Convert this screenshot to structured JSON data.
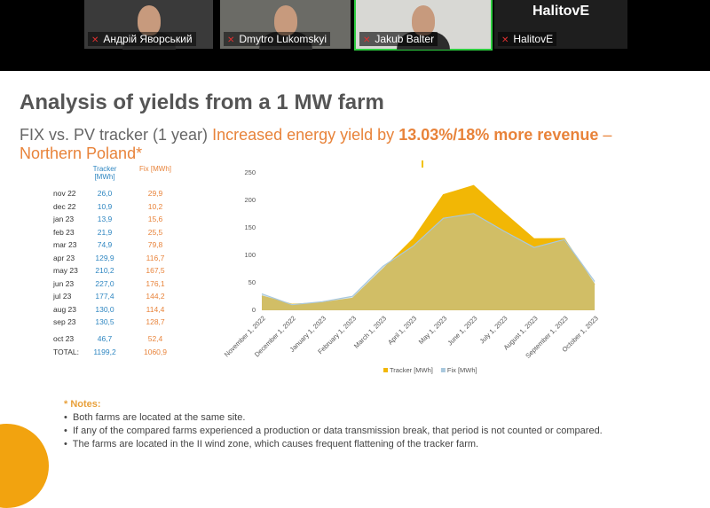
{
  "participants": [
    {
      "name": "Андрій Яворський"
    },
    {
      "name": "Dmytro Lukomskyi"
    },
    {
      "name": "Jakub Balter"
    },
    {
      "name": "HalitovE"
    }
  ],
  "avatar_label": "HalitovE",
  "slide": {
    "title": "Analysis of yields from a 1 MW farm",
    "subtitle": {
      "part1": "FIX vs. PV tracker (1 year)",
      "part2": "Increased energy yield by",
      "part3": "13.03%/18% more revenue",
      "part4": "– Northern Poland*"
    },
    "table": {
      "header": [
        "Tracker [MWh]",
        "Fix [MWh]"
      ],
      "rows": [
        [
          "nov 22",
          "26,0",
          "29,9"
        ],
        [
          "dec 22",
          "10,9",
          "10,2"
        ],
        [
          "jan 23",
          "13,9",
          "15,6"
        ],
        [
          "feb 23",
          "21,9",
          "25,5"
        ],
        [
          "mar 23",
          "74,9",
          "79,8"
        ],
        [
          "apr 23",
          "129,9",
          "116,7"
        ],
        [
          "may 23",
          "210,2",
          "167,5"
        ],
        [
          "jun 23",
          "227,0",
          "176,1"
        ],
        [
          "jul 23",
          "177,4",
          "144,2"
        ],
        [
          "aug 23",
          "130,0",
          "114,4"
        ],
        [
          "sep 23",
          "130,5",
          "128,7"
        ],
        [
          "oct 23",
          "46,7",
          "52,4"
        ],
        [
          "TOTAL:",
          "1199,2",
          "1060,9"
        ]
      ]
    },
    "notes": {
      "heading": "* Notes:",
      "items": [
        "Both farms are located at the same site.",
        "If any of the compared farms experienced a production or data transmission break, that period is not counted or compared.",
        "The farms are located in the II wind zone, which causes frequent flattening of the tracker farm."
      ]
    }
  },
  "chart_data": {
    "type": "area",
    "x": [
      "November 1, 2022",
      "December 1, 2022",
      "January 1, 2023",
      "February 1, 2023",
      "March 1, 2023",
      "April 1, 2023",
      "May 1, 2023",
      "June 1, 2023",
      "July 1, 2023",
      "August 1, 2023",
      "September 1, 2023",
      "October 1, 2023"
    ],
    "series": [
      {
        "name": "Tracker [MWh]",
        "color": "#f2b705",
        "values": [
          26.0,
          10.9,
          13.9,
          21.9,
          74.9,
          129.9,
          210.2,
          227.0,
          177.4,
          130.0,
          130.5,
          46.7
        ]
      },
      {
        "name": "Fix [MWh]",
        "color": "#a9c8dd",
        "values": [
          29.9,
          10.2,
          15.6,
          25.5,
          79.8,
          116.7,
          167.5,
          176.1,
          144.2,
          114.4,
          128.7,
          52.4
        ]
      }
    ],
    "ylim": [
      0,
      250
    ],
    "yticks": [
      0,
      50,
      100,
      150,
      200,
      250
    ],
    "legend": "bottom"
  }
}
